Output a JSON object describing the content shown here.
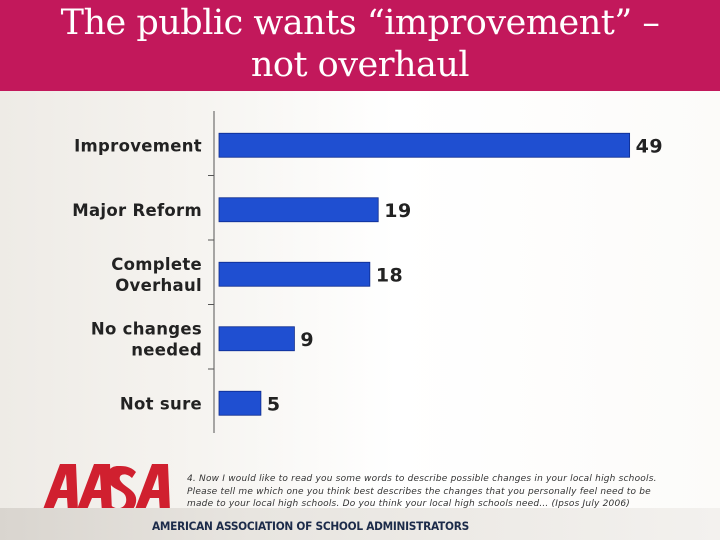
{
  "header": {
    "title_line1": "The public wants “improvement” –",
    "title_line2": "not overhaul"
  },
  "chart_data": {
    "type": "bar",
    "orientation": "horizontal",
    "categories": [
      [
        "Improvement"
      ],
      [
        "Major Reform"
      ],
      [
        "Complete",
        "Overhaul"
      ],
      [
        "No changes",
        "needed"
      ],
      [
        "Not sure"
      ]
    ],
    "values": [
      49,
      19,
      18,
      9,
      5
    ],
    "bar_color": "#1f4fd1",
    "bar_edge_color": "#0d2a8c",
    "grid": false,
    "legend": "none"
  },
  "footnote": {
    "line1": "4.  Now I would like to read you some words to describe possible changes in your local high schools.",
    "line2": "Please tell me which one you think best describes the changes that you personally feel need to be",
    "line3": "made to your local high schools.  Do you think your local high schools need… (Ipsos July 2006)"
  },
  "organization": {
    "logo_text": "AASA",
    "name": "AMERICAN ASSOCIATION OF SCHOOL ADMINISTRATORS",
    "colors": {
      "logo_red": "#d0202f",
      "logo_navy": "#1c2b4a",
      "title_bar": "#c2185b"
    }
  }
}
